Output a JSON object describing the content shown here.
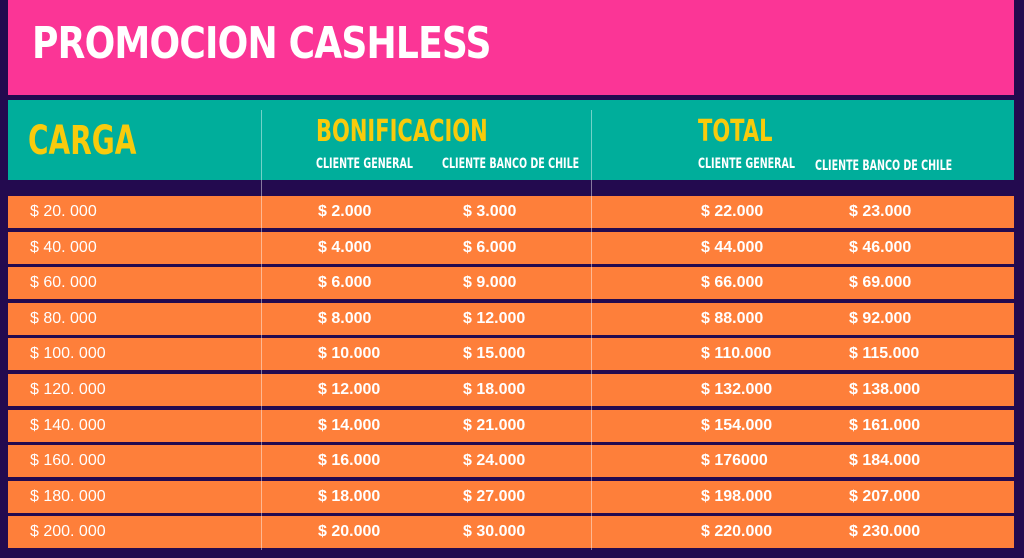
{
  "title": "PROMOCION CASHLESS",
  "headers": {
    "carga": "CARGA",
    "bonificacion": "BONIFICACION",
    "total": "TOTAL",
    "cliente_general": "CLIENTE GENERAL",
    "cliente_banco": "CLIENTE BANCO DE CHILE"
  },
  "colors": {
    "background": "#230a4f",
    "title_bar": "#fb3596",
    "header": "#00ae9b",
    "header_text": "#f8cb0c",
    "row": "#fe7f3a"
  },
  "rows": [
    [
      "$ 20. 000",
      "$ 2.000",
      "$ 3.000",
      "$ 22.000",
      "$ 23.000"
    ],
    [
      "$ 40. 000",
      "$ 4.000",
      "$ 6.000",
      "$ 44.000",
      "$ 46.000"
    ],
    [
      "$ 60. 000",
      "$ 6.000",
      "$ 9.000",
      "$ 66.000",
      "$ 69.000"
    ],
    [
      "$ 80. 000",
      "$ 8.000",
      "$ 12.000",
      "$ 88.000",
      "$ 92.000"
    ],
    [
      "$ 100. 000",
      "$ 10.000",
      "$ 15.000",
      "$ 110.000",
      "$ 115.000"
    ],
    [
      "$ 120. 000",
      "$ 12.000",
      "$ 18.000",
      "$ 132.000",
      "$ 138.000"
    ],
    [
      "$ 140. 000",
      "$ 14.000",
      "$ 21.000",
      "$ 154.000",
      "$ 161.000"
    ],
    [
      "$ 160. 000",
      "$ 16.000",
      "$ 24.000",
      "$ 176000",
      "$ 184.000"
    ],
    [
      "$ 180. 000",
      "$ 18.000",
      "$ 27.000",
      "$ 198.000",
      "$ 207.000"
    ],
    [
      "$ 200. 000",
      "$ 20.000",
      "$ 30.000",
      "$ 220.000",
      "$ 230.000"
    ]
  ]
}
